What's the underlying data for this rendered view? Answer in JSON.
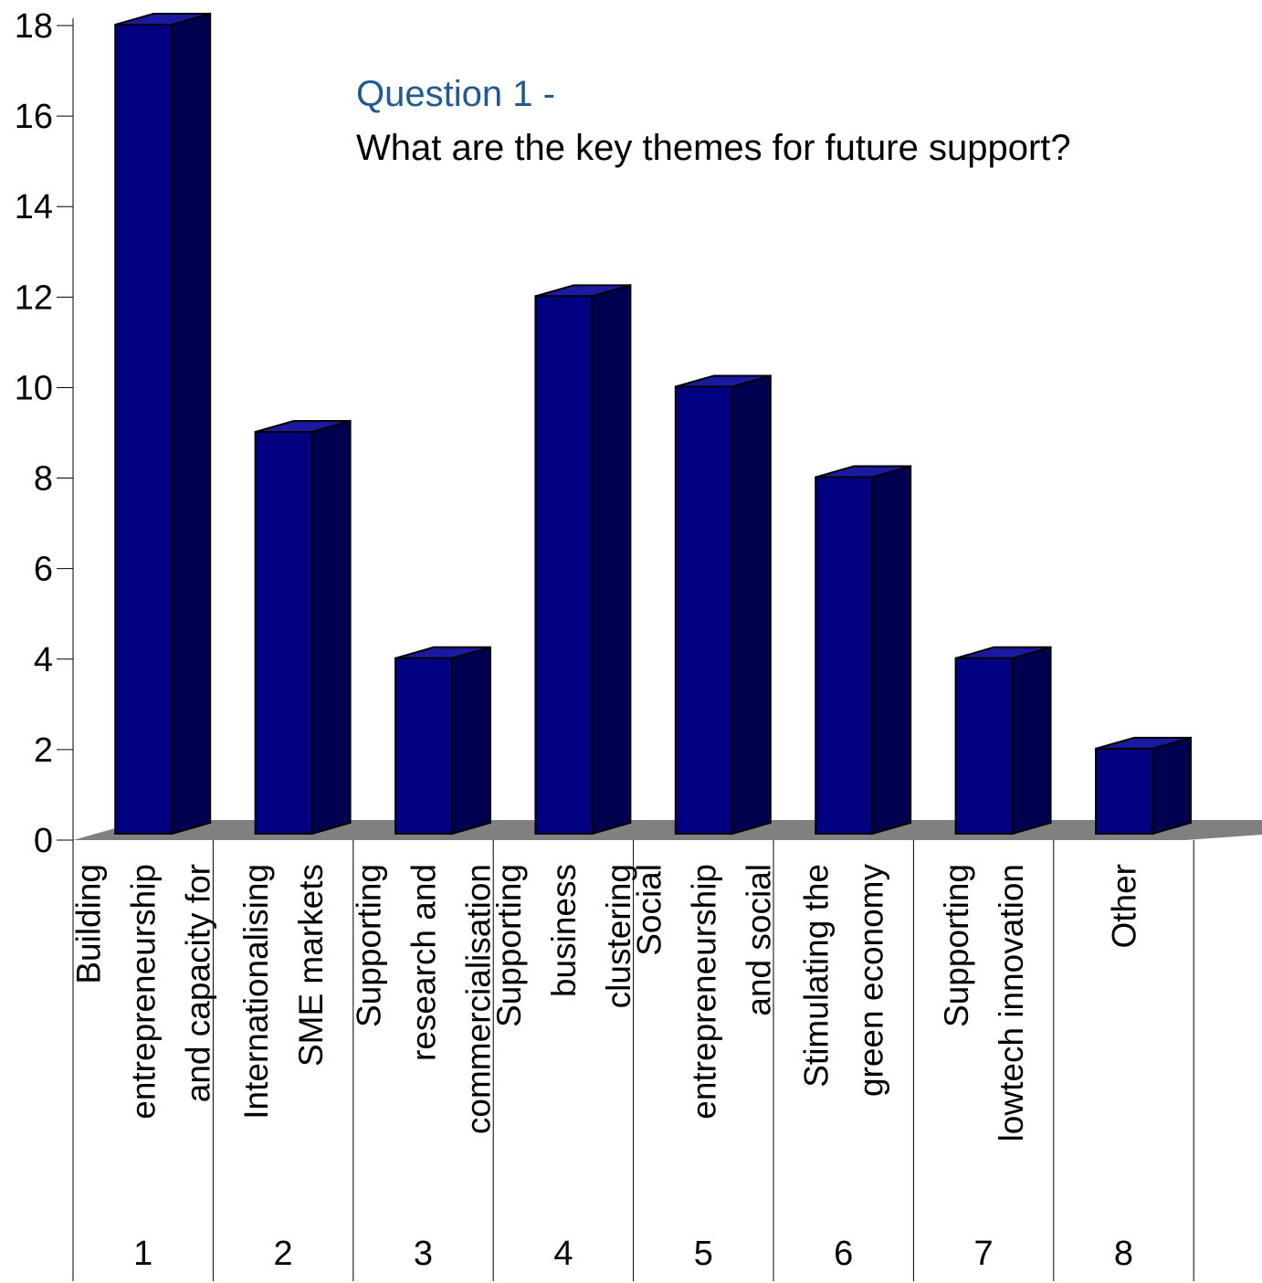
{
  "chart_data": {
    "type": "bar",
    "title_line1": "Question 1 -",
    "title_line2": "What are the key themes for future support?",
    "xlabel": "",
    "ylabel": "",
    "ylim": [
      0,
      18
    ],
    "yticks": [
      0,
      2,
      4,
      6,
      8,
      10,
      12,
      14,
      16,
      18
    ],
    "grid": false,
    "legend": "none",
    "style": "3d-column",
    "categories": [
      "1",
      "2",
      "3",
      "4",
      "5",
      "6",
      "7",
      "8"
    ],
    "category_descriptions": [
      [
        "Building",
        "entrepreneurship",
        "and capacity for"
      ],
      [
        "Internationalising",
        "SME markets"
      ],
      [
        "Supporting",
        "research and",
        "commercialisation"
      ],
      [
        "Supporting",
        "business",
        "clustering"
      ],
      [
        "Social",
        "entrepreneurship",
        "and social"
      ],
      [
        "Stimulating the",
        "green economy"
      ],
      [
        "Supporting",
        "lowtech innovation"
      ],
      [
        "Other"
      ]
    ],
    "values": [
      18,
      9,
      4,
      12,
      10,
      8,
      4,
      2
    ],
    "colors": {
      "bar_front": "#000080",
      "bar_side": "#000050",
      "bar_top": "#1a1aa0",
      "floor": "#808080",
      "title_accent": "#1f5a96"
    }
  }
}
